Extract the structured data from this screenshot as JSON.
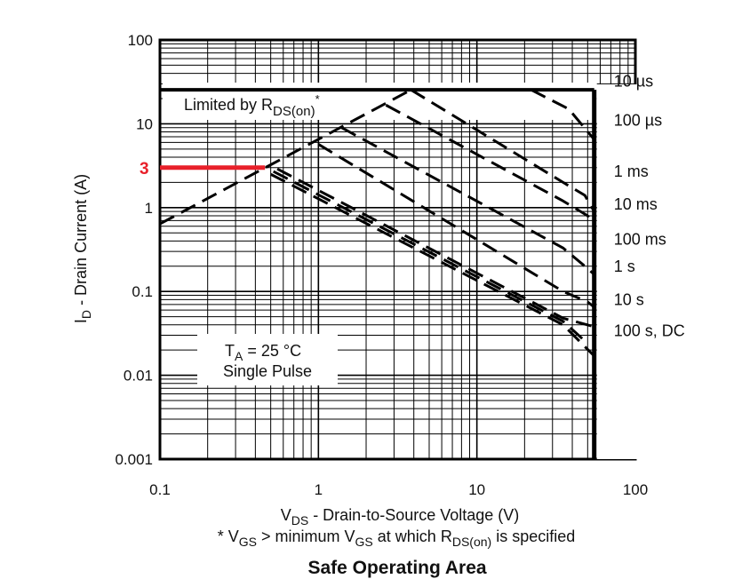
{
  "chart_data": {
    "type": "line",
    "title": "Safe Operating Area",
    "xscale": "log",
    "yscale": "log",
    "xlim": [
      0.1,
      100
    ],
    "ylim": [
      0.001,
      100
    ],
    "x_ticks": [
      "0.1",
      "1",
      "10",
      "100"
    ],
    "y_ticks": [
      "100",
      "10",
      "1",
      "0.1",
      "0.01",
      "0.001"
    ],
    "xlabel": {
      "main": "V",
      "sub": "DS",
      "rest": " - Drain-to-Source Voltage (V)"
    },
    "ylabel": {
      "main": "I",
      "sub": "D",
      "rest": " - Drain Current (A)"
    },
    "footnote": {
      "p1": "* V",
      "s1": "GS",
      "p2": " > minimum V",
      "s2": "GS",
      "p3": " at which R",
      "s3": "DS(on)",
      "p4": " is specified"
    },
    "grid": true,
    "limits": {
      "current_limit_A": 25.4,
      "voltage_limit_V": 55
    },
    "rds_on_line": {
      "label_main": "Limited by R",
      "label_sub": "DS(on)",
      "label_sup": "*",
      "points": [
        [
          0.1,
          0.64
        ],
        [
          3.84,
          25.4
        ]
      ]
    },
    "conditions": {
      "ta_main": "T",
      "ta_sub": "A",
      "ta_rest": " = 25 °C",
      "pulse": "Single Pulse"
    },
    "series": [
      {
        "name": "10 µs",
        "points": [
          [
            3.84,
            25.4
          ],
          [
            22,
            25.4
          ],
          [
            38,
            15
          ],
          [
            55,
            6.5
          ]
        ]
      },
      {
        "name": "100 µs",
        "points": [
          [
            3.84,
            25.4
          ],
          [
            35,
            2.0
          ],
          [
            48,
            1.4
          ],
          [
            55,
            0.9
          ]
        ]
      },
      {
        "name": "1 ms",
        "points": [
          [
            2.67,
            16.7
          ],
          [
            35,
            1.2
          ],
          [
            50,
            0.8
          ],
          [
            55,
            0.61
          ]
        ]
      },
      {
        "name": "10 ms",
        "points": [
          [
            1.4,
            9.0
          ],
          [
            35,
            0.33
          ],
          [
            48,
            0.2
          ],
          [
            55,
            0.16
          ]
        ]
      },
      {
        "name": "100 ms",
        "points": [
          [
            1.0,
            5.7
          ],
          [
            35,
            0.1
          ],
          [
            50,
            0.075
          ],
          [
            55,
            0.065
          ]
        ]
      },
      {
        "name": "1 s",
        "points": [
          [
            0.55,
            2.9
          ],
          [
            35,
            0.048
          ],
          [
            55,
            0.038
          ]
        ]
      },
      {
        "name": "10 s",
        "points": [
          [
            0.52,
            2.7
          ],
          [
            35,
            0.044
          ],
          [
            50,
            0.024
          ]
        ]
      },
      {
        "name": "100 s, DC",
        "points": [
          [
            0.5,
            2.5
          ],
          [
            35,
            0.04
          ],
          [
            55,
            0.017
          ]
        ]
      }
    ],
    "series_label_currents": [
      32,
      11,
      2.7,
      1.1,
      0.42,
      0.2,
      0.08,
      0.034
    ],
    "marker": {
      "label": "3",
      "value_A": 3,
      "color": "#e8202a",
      "x_end_V": 0.46
    }
  }
}
